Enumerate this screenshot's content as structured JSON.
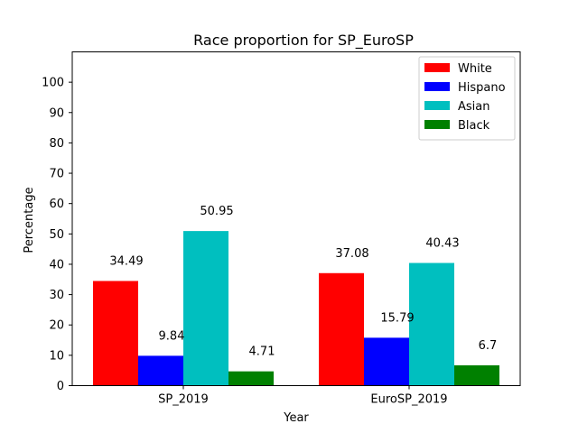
{
  "chart_data": {
    "type": "bar",
    "title": "Race proportion for SP_EuroSP",
    "xlabel": "Year",
    "ylabel": "Percentage",
    "categories": [
      "SP_2019",
      "EuroSP_2019"
    ],
    "series": [
      {
        "name": "White",
        "values": [
          34.49,
          37.08
        ],
        "color": "#ff0000"
      },
      {
        "name": "Hispano",
        "values": [
          9.84,
          15.79
        ],
        "color": "#0000ff"
      },
      {
        "name": "Asian",
        "values": [
          50.95,
          40.43
        ],
        "color": "#00bfbf"
      },
      {
        "name": "Black",
        "values": [
          4.71,
          6.7
        ],
        "color": "#008000"
      }
    ],
    "ylim": [
      0,
      110
    ],
    "yticks": [
      0,
      10,
      20,
      30,
      40,
      50,
      60,
      70,
      80,
      90,
      100
    ],
    "grid": false,
    "legend_position": "top-right"
  }
}
